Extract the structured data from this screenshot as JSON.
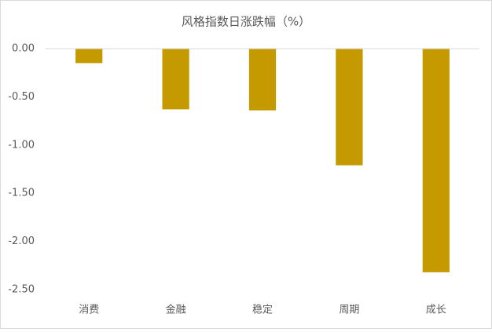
{
  "chart_data": {
    "type": "bar",
    "title": "风格指数日涨跌幅（%）",
    "categories": [
      "消费",
      "金融",
      "稳定",
      "周期",
      "成长"
    ],
    "values": [
      -0.15,
      -0.63,
      -0.64,
      -1.21,
      -2.32
    ],
    "color": "#c49a00",
    "ylim": [
      -2.5,
      0
    ],
    "yticks": [
      {
        "value": 0,
        "label": "0.00"
      },
      {
        "value": -0.5,
        "label": "-0.50"
      },
      {
        "value": -1,
        "label": "-1.00"
      },
      {
        "value": -1.5,
        "label": "-1.50"
      },
      {
        "value": -2,
        "label": "-2.00"
      },
      {
        "value": -2.5,
        "label": "-2.50"
      }
    ],
    "grid": false
  }
}
